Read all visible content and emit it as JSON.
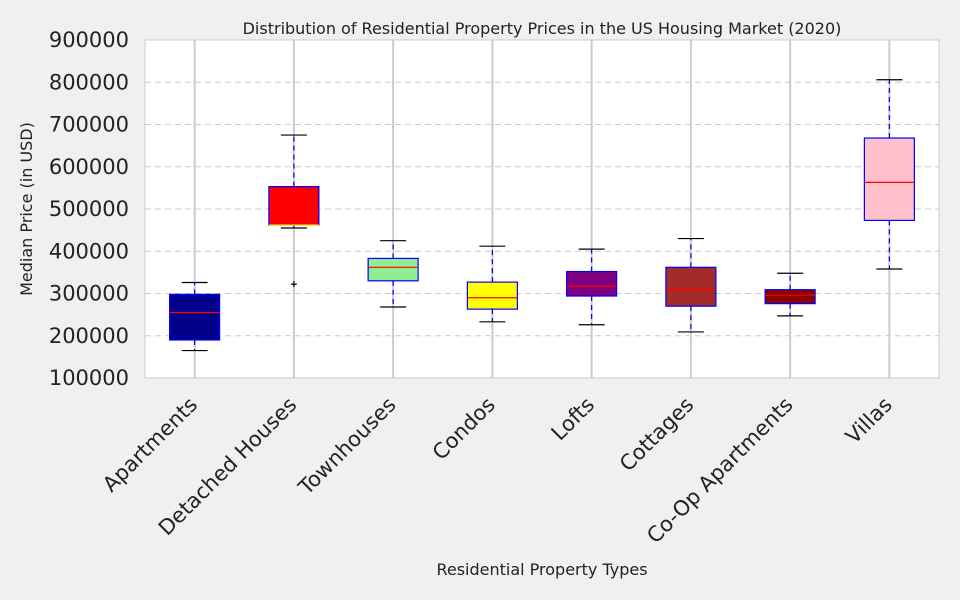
{
  "chart_data": {
    "type": "box",
    "title": "Distribution of Residential Property Prices in the US Housing Market (2020)",
    "xlabel": "Residential Property Types",
    "ylabel": "Median Price (in USD)",
    "ylim": [
      100000,
      900000
    ],
    "yticks": [
      "100000",
      "200000",
      "300000",
      "400000",
      "500000",
      "600000",
      "700000",
      "800000",
      "900000"
    ],
    "grid": "horizontal dashed + vertical solid",
    "categories": [
      "Apartments",
      "Detached Houses",
      "Townhouses",
      "Condos",
      "Lofts",
      "Cottages",
      "Co-Op Apartments",
      "Villas"
    ],
    "boxes": [
      {
        "category": "Apartments",
        "whisker_low": 165000,
        "q1": 190000,
        "median": 255000,
        "q3": 298000,
        "whisker_high": 326000,
        "outliers": [],
        "color": "#00008b"
      },
      {
        "category": "Detached Houses",
        "whisker_low": 455000,
        "q1": 462000,
        "median": 462000,
        "q3": 553000,
        "whisker_high": 675000,
        "outliers": [
          322000
        ],
        "color": "#ff0000"
      },
      {
        "category": "Townhouses",
        "whisker_low": 268000,
        "q1": 330000,
        "median": 362000,
        "q3": 383000,
        "whisker_high": 425000,
        "outliers": [],
        "color": "#90ee90"
      },
      {
        "category": "Condos",
        "whisker_low": 233000,
        "q1": 263000,
        "median": 290000,
        "q3": 327000,
        "whisker_high": 412000,
        "outliers": [],
        "color": "#ffff00"
      },
      {
        "category": "Lofts",
        "whisker_low": 226000,
        "q1": 294000,
        "median": 317000,
        "q3": 352000,
        "whisker_high": 405000,
        "outliers": [],
        "color": "#800080"
      },
      {
        "category": "Cottages",
        "whisker_low": 209000,
        "q1": 270000,
        "median": 310000,
        "q3": 362000,
        "whisker_high": 430000,
        "outliers": [],
        "color": "#a52a2a"
      },
      {
        "category": "Co-Op Apartments",
        "whisker_low": 247000,
        "q1": 276000,
        "median": 296000,
        "q3": 309000,
        "whisker_high": 348000,
        "outliers": [],
        "color": "#8b0000"
      },
      {
        "category": "Villas",
        "whisker_low": 358000,
        "q1": 473000,
        "median": 563000,
        "q3": 668000,
        "whisker_high": 806000,
        "outliers": [],
        "color": "#ffc0cb"
      }
    ],
    "colors": {
      "box_edge": "#0000ff",
      "whisker": "#0000ff",
      "cap": "#000000",
      "median_default": "#ff0000",
      "median_on_red": "#ffff00",
      "plot_bg": "#ffffff",
      "figure_bg": "#f0f0f0",
      "grid": "#cccccc"
    }
  }
}
